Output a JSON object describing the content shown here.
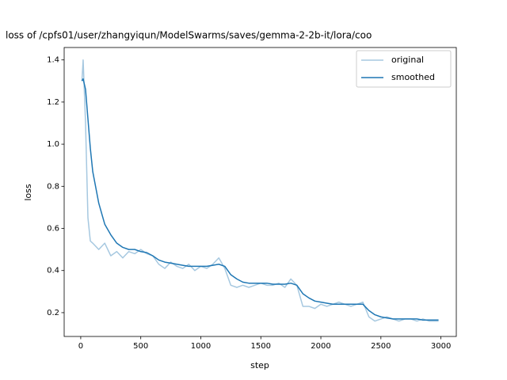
{
  "chart_data": {
    "type": "line",
    "title": "loss of /cpfs01/user/zhangyiqun/ModelSwarms/saves/gemma-2-2b-it/lora/coo",
    "xlabel": "step",
    "ylabel": "loss",
    "x": [
      10,
      20,
      40,
      60,
      80,
      100,
      150,
      200,
      250,
      300,
      350,
      400,
      450,
      500,
      550,
      600,
      650,
      700,
      750,
      800,
      850,
      900,
      950,
      1000,
      1050,
      1100,
      1150,
      1200,
      1250,
      1300,
      1350,
      1400,
      1450,
      1500,
      1550,
      1600,
      1650,
      1700,
      1750,
      1800,
      1850,
      1900,
      1950,
      2000,
      2050,
      2100,
      2150,
      2200,
      2250,
      2300,
      2350,
      2400,
      2450,
      2500,
      2550,
      2600,
      2650,
      2700,
      2750,
      2800,
      2850,
      2900,
      2950,
      2980
    ],
    "series": [
      {
        "name": "original",
        "color": "#a6c8e0",
        "values": [
          1.3,
          1.4,
          1.1,
          0.65,
          0.54,
          0.53,
          0.5,
          0.53,
          0.47,
          0.49,
          0.46,
          0.49,
          0.48,
          0.5,
          0.48,
          0.47,
          0.43,
          0.41,
          0.44,
          0.42,
          0.41,
          0.43,
          0.4,
          0.42,
          0.41,
          0.43,
          0.46,
          0.41,
          0.33,
          0.32,
          0.33,
          0.32,
          0.33,
          0.34,
          0.33,
          0.33,
          0.34,
          0.32,
          0.36,
          0.33,
          0.23,
          0.23,
          0.22,
          0.24,
          0.23,
          0.24,
          0.25,
          0.24,
          0.23,
          0.24,
          0.25,
          0.18,
          0.16,
          0.17,
          0.18,
          0.17,
          0.16,
          0.17,
          0.17,
          0.16,
          0.17,
          0.16,
          0.16,
          0.16
        ]
      },
      {
        "name": "smoothed",
        "color": "#1f77b4",
        "values": [
          1.3,
          1.31,
          1.26,
          1.12,
          0.98,
          0.87,
          0.72,
          0.62,
          0.57,
          0.53,
          0.51,
          0.5,
          0.5,
          0.49,
          0.485,
          0.47,
          0.45,
          0.44,
          0.435,
          0.43,
          0.425,
          0.42,
          0.42,
          0.42,
          0.42,
          0.425,
          0.43,
          0.42,
          0.38,
          0.36,
          0.345,
          0.34,
          0.34,
          0.34,
          0.34,
          0.335,
          0.335,
          0.335,
          0.34,
          0.33,
          0.29,
          0.27,
          0.255,
          0.25,
          0.245,
          0.24,
          0.24,
          0.24,
          0.24,
          0.24,
          0.24,
          0.21,
          0.19,
          0.18,
          0.175,
          0.17,
          0.17,
          0.17,
          0.17,
          0.17,
          0.165,
          0.165,
          0.165,
          0.165
        ]
      }
    ],
    "xlim": [
      -138,
      3128
    ],
    "ylim": [
      0.087,
      1.459
    ],
    "xticks": [
      0,
      500,
      1000,
      1500,
      2000,
      2500,
      3000
    ],
    "yticks": [
      0.2,
      0.4,
      0.6,
      0.8,
      {
        "value": 1,
        "label": "1.0"
      },
      1.2,
      1.4
    ],
    "legend": "upper right"
  }
}
